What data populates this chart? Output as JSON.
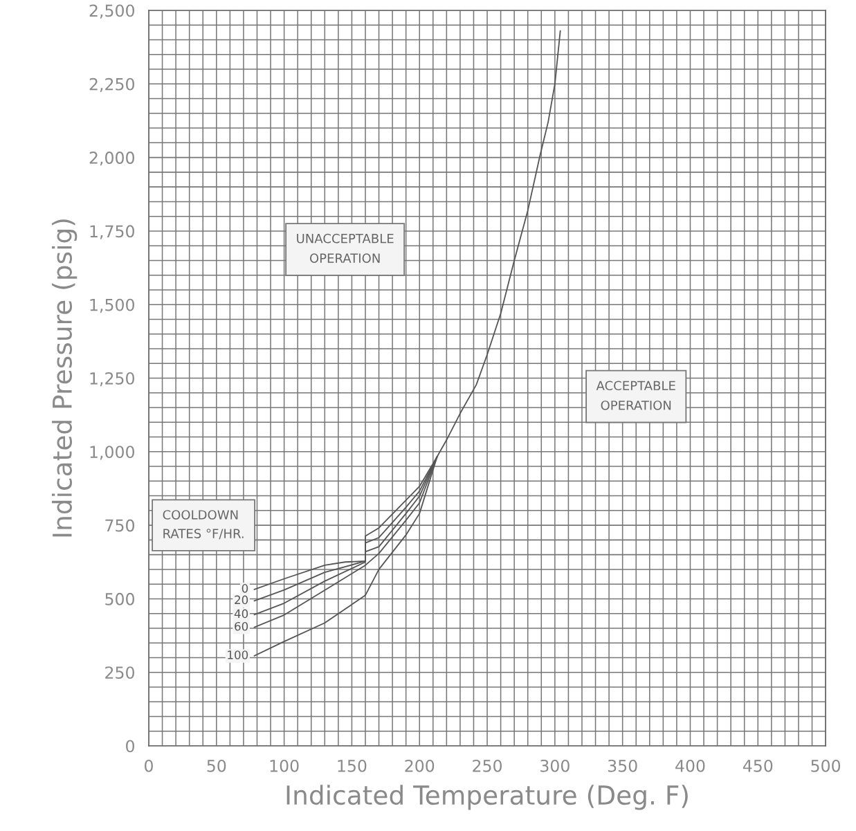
{
  "chart_data": {
    "type": "line",
    "xlabel": "Indicated Temperature (Deg. F)",
    "ylabel": "Indicated Pressure (psig)",
    "legend_title": "COOLDOWN RATES °F/HR.",
    "annotations": [
      "UNACCEPTABLE\nOPERATION",
      "ACCEPTABLE\nOPERATION"
    ],
    "series": [
      {
        "name": "0",
        "color": "#555555",
        "x": [
          78,
          100,
          130,
          145,
          160,
          160,
          170,
          190,
          200,
          213,
          220,
          230,
          242,
          250,
          260,
          270,
          280,
          289,
          295,
          300,
          304
        ],
        "values": [
          532,
          568,
          614,
          625,
          628,
          713,
          741,
          835,
          882,
          983,
          1040,
          1130,
          1228,
          1330,
          1470,
          1650,
          1820,
          2006,
          2120,
          2250,
          2430
        ]
      },
      {
        "name": "20",
        "color": "#555555",
        "x": [
          78,
          100,
          130,
          160,
          160,
          170,
          190,
          200,
          213
        ],
        "values": [
          493,
          530,
          590,
          628,
          690,
          708,
          811,
          866,
          983
        ]
      },
      {
        "name": "40",
        "color": "#555555",
        "x": [
          78,
          100,
          130,
          160,
          160,
          170,
          190,
          200,
          213
        ],
        "values": [
          446,
          485,
          560,
          625,
          660,
          677,
          790,
          849,
          983
        ]
      },
      {
        "name": "60",
        "color": "#555555",
        "x": [
          78,
          100,
          130,
          160,
          170,
          190,
          200,
          213
        ],
        "values": [
          403,
          445,
          529,
          614,
          654,
          767,
          826,
          983
        ]
      },
      {
        "name": "100",
        "color": "#555555",
        "x": [
          78,
          100,
          130,
          160,
          170,
          190,
          200,
          213
        ],
        "values": [
          306,
          355,
          418,
          512,
          600,
          717,
          790,
          983
        ]
      }
    ],
    "xlim": [
      0,
      500
    ],
    "xticks": [
      0,
      50,
      100,
      150,
      200,
      250,
      300,
      350,
      400,
      450,
      500
    ],
    "ylim": [
      0,
      2500
    ],
    "yticks": [
      0,
      250,
      500,
      750,
      {
        "value": 1000,
        "label": "1,000"
      },
      {
        "value": 1250,
        "label": "1,250"
      },
      {
        "value": 1500,
        "label": "1,500"
      },
      {
        "value": 1750,
        "label": "1,750"
      },
      {
        "value": 2000,
        "label": "2,000"
      },
      {
        "value": 2250,
        "label": "2,250"
      },
      {
        "value": 2500,
        "label": "2,500"
      }
    ],
    "grid": true,
    "marker": "none",
    "line_style": "solid"
  }
}
